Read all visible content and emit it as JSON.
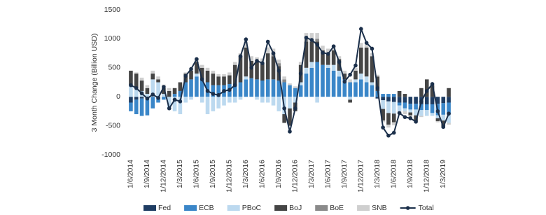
{
  "chart_data": {
    "type": "stacked-bar-line",
    "y_label": "3 Month Change (Billion USD)",
    "ylim": [
      -1000,
      1500
    ],
    "yticks": [
      -1000,
      -500,
      0,
      500,
      1000,
      1500
    ],
    "categories": [
      "1/6/2014",
      null,
      null,
      "1/9/2014",
      null,
      null,
      "1/12/2014",
      null,
      null,
      "1/3/2015",
      null,
      null,
      "1/6/2015",
      null,
      null,
      "1/9/2015",
      null,
      null,
      "1/12/2015",
      null,
      null,
      "1/3/2016",
      null,
      null,
      "1/6/2016",
      null,
      null,
      "1/9/2016",
      null,
      null,
      "1/12/2016",
      null,
      null,
      "1/3/2017",
      null,
      null,
      "1/6/2017",
      null,
      null,
      "1/9/2017",
      null,
      null,
      "1/12/2017",
      null,
      null,
      "1/3/2018",
      null,
      null,
      "1/6/2018",
      null,
      null,
      "1/9/2018",
      null,
      null,
      "1/12/2018",
      null,
      null,
      "1/3/2019",
      null
    ],
    "series": [
      {
        "name": "Fed",
        "color": "#1f3d63",
        "values": [
          -100,
          -50,
          -30,
          -20,
          0,
          0,
          0,
          0,
          0,
          0,
          0,
          0,
          0,
          0,
          0,
          0,
          0,
          0,
          0,
          0,
          0,
          0,
          0,
          0,
          0,
          0,
          0,
          0,
          0,
          0,
          0,
          0,
          0,
          0,
          0,
          0,
          0,
          0,
          0,
          0,
          0,
          0,
          0,
          0,
          0,
          -30,
          -60,
          -80,
          -90,
          -100,
          -100,
          -120,
          -120,
          -130,
          -130,
          -130,
          -120,
          -110,
          -100
        ]
      },
      {
        "name": "ECB",
        "color": "#3a86c8",
        "values": [
          -150,
          -250,
          -300,
          -300,
          -200,
          -100,
          -50,
          0,
          50,
          100,
          250,
          300,
          350,
          300,
          250,
          200,
          200,
          200,
          220,
          200,
          250,
          300,
          320,
          300,
          280,
          300,
          300,
          280,
          250,
          200,
          150,
          200,
          400,
          500,
          600,
          550,
          500,
          450,
          350,
          300,
          250,
          250,
          300,
          250,
          200,
          100,
          50,
          50,
          50,
          -50,
          -100,
          -100,
          -100,
          -100,
          -100,
          -150,
          -200,
          -200,
          -200
        ]
      },
      {
        "name": "PBoC",
        "color": "#bcd9ef",
        "values": [
          200,
          150,
          100,
          50,
          300,
          250,
          50,
          -200,
          -250,
          -300,
          -100,
          -50,
          50,
          -100,
          -300,
          -250,
          -200,
          -150,
          -100,
          -100,
          -50,
          50,
          0,
          -50,
          -100,
          -100,
          -150,
          -250,
          -300,
          -200,
          -100,
          50,
          100,
          100,
          -100,
          0,
          50,
          100,
          100,
          0,
          -50,
          50,
          100,
          100,
          50,
          0,
          -150,
          -200,
          -200,
          -100,
          -50,
          -50,
          -100,
          -100,
          -100,
          -50,
          -50,
          -100,
          -150
        ]
      },
      {
        "name": "BoJ",
        "color": "#454545",
        "values": [
          250,
          250,
          180,
          100,
          100,
          50,
          100,
          100,
          100,
          150,
          150,
          150,
          200,
          200,
          200,
          200,
          150,
          150,
          150,
          350,
          450,
          500,
          300,
          300,
          300,
          450,
          400,
          250,
          -150,
          -300,
          -150,
          300,
          450,
          350,
          350,
          250,
          200,
          250,
          200,
          100,
          -50,
          150,
          450,
          500,
          450,
          250,
          -200,
          -200,
          -150,
          100,
          50,
          -50,
          -100,
          150,
          300,
          200,
          -50,
          -100,
          150
        ]
      },
      {
        "name": "BoE",
        "color": "#8a8a8a",
        "values": [
          0,
          0,
          0,
          0,
          0,
          0,
          0,
          0,
          0,
          0,
          0,
          0,
          0,
          0,
          0,
          0,
          0,
          0,
          0,
          0,
          0,
          0,
          0,
          0,
          0,
          0,
          50,
          50,
          50,
          0,
          0,
          0,
          50,
          50,
          50,
          0,
          0,
          0,
          0,
          0,
          0,
          0,
          0,
          0,
          0,
          0,
          0,
          0,
          0,
          0,
          0,
          0,
          0,
          0,
          0,
          0,
          0,
          0,
          0
        ]
      },
      {
        "name": "SNB",
        "color": "#cfcfcf",
        "values": [
          0,
          20,
          50,
          50,
          50,
          50,
          60,
          50,
          0,
          0,
          20,
          30,
          50,
          50,
          50,
          50,
          40,
          40,
          50,
          50,
          50,
          100,
          80,
          80,
          80,
          100,
          80,
          60,
          50,
          30,
          30,
          50,
          100,
          100,
          100,
          80,
          80,
          80,
          50,
          50,
          50,
          50,
          80,
          50,
          50,
          30,
          -30,
          -50,
          -50,
          -50,
          -50,
          -30,
          -30,
          -20,
          0,
          0,
          -20,
          -30,
          -30
        ]
      }
    ],
    "total": {
      "name": "Total",
      "color": "#1b2f4a",
      "values": [
        200,
        150,
        60,
        -30,
        40,
        -20,
        170,
        -200,
        -50,
        -80,
        360,
        480,
        650,
        300,
        100,
        50,
        30,
        100,
        120,
        200,
        700,
        990,
        500,
        620,
        580,
        950,
        750,
        450,
        -200,
        -600,
        -200,
        400,
        1020,
        980,
        900,
        760,
        740,
        870,
        600,
        260,
        380,
        540,
        1170,
        930,
        830,
        150,
        -530,
        -670,
        -620,
        -280,
        -350,
        -370,
        -430,
        -80,
        100,
        220,
        -250,
        -520,
        -290
      ]
    }
  }
}
